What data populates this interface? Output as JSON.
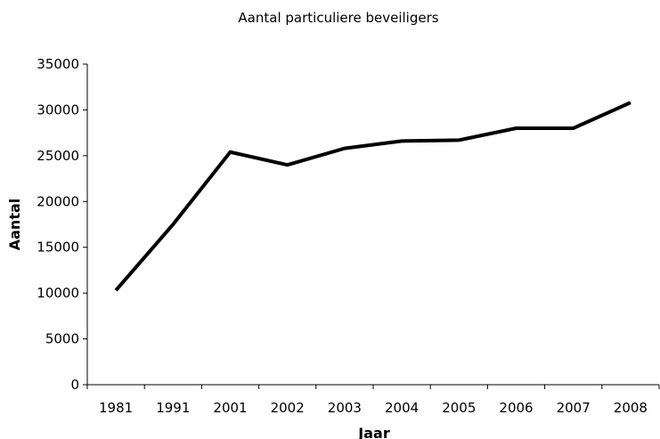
{
  "chart_data": {
    "type": "line",
    "title": "Aantal particuliere beveiligers",
    "xlabel": "Jaar",
    "ylabel": "Aantal",
    "categories": [
      "1981",
      "1991",
      "2001",
      "2002",
      "2003",
      "2004",
      "2005",
      "2006",
      "2007",
      "2008"
    ],
    "series": [
      {
        "values": [
          10300,
          17500,
          25400,
          24000,
          25800,
          26600,
          26700,
          28000,
          28000,
          30800
        ]
      }
    ],
    "ylim": [
      0,
      35000
    ],
    "yticks": [
      0,
      5000,
      10000,
      15000,
      20000,
      25000,
      30000,
      35000
    ],
    "ytick_labels": [
      "0",
      "5000",
      "10000",
      "15000",
      "20000",
      "25000",
      "30000",
      "35000"
    ],
    "grid": false,
    "legend": "none",
    "line_color": "#000000"
  }
}
